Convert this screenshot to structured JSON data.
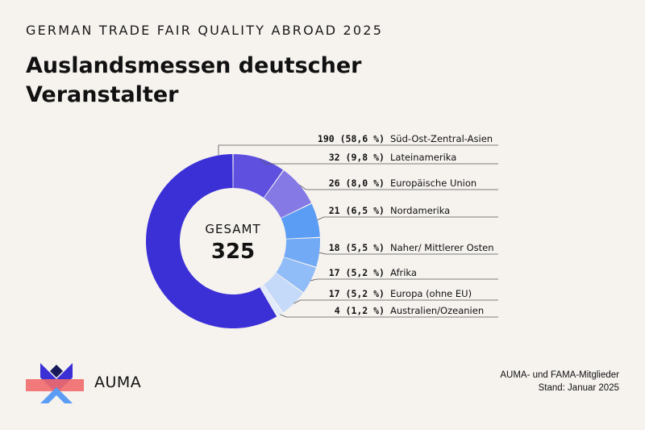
{
  "header": {
    "kicker": "GERMAN TRADE FAIR QUALITY ABROAD 2025",
    "title": "Auslandsmessen deutscher Veranstalter"
  },
  "footer": {
    "logo_text": "AUMA",
    "source_line1": "AUMA- und FAMA-Mitglieder",
    "source_line2": "Stand: Januar 2025"
  },
  "chart_data": {
    "type": "pie",
    "variant": "donut",
    "center_label": "GESAMT",
    "center_value": "325",
    "total": 325,
    "categories": [
      "Süd-Ost-Zentral-Asien",
      "Lateinamerika",
      "Europäische Union",
      "Nordamerika",
      "Naher/ Mittlerer Osten",
      "Afrika",
      "Europa (ohne EU)",
      "Australien/Ozeanien"
    ],
    "values": [
      190,
      32,
      26,
      21,
      18,
      17,
      17,
      4
    ],
    "value_labels": [
      "190 (58,6 %)",
      "32 (9,8 %)",
      "26 (8,0 %)",
      "21 (6,5 %)",
      "18 (5,5 %)",
      "17 (5,2 %)",
      "17 (5,2 %)",
      "4 (1,2 %)"
    ],
    "colors": [
      "#3b2fd6",
      "#5f50e0",
      "#8579e6",
      "#5b9cf4",
      "#72aaf6",
      "#90bcf7",
      "#c5d9f9",
      "#e1ebfb"
    ],
    "legend_position": "right"
  }
}
